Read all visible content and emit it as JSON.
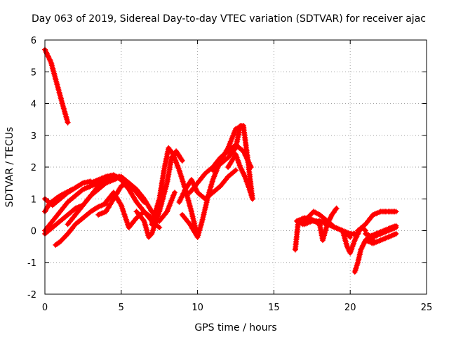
{
  "chart_data": {
    "type": "scatter",
    "title": "Day 063 of 2019, Sidereal Day-to-day VTEC variation (SDTVAR) for receiver ajac",
    "xlabel": "GPS time / hours",
    "ylabel": "SDTVAR / TECUs",
    "xlim": [
      0,
      25
    ],
    "ylim": [
      -2,
      6
    ],
    "xticks": [
      0,
      5,
      10,
      15,
      20,
      25
    ],
    "yticks": [
      -2,
      -1,
      0,
      1,
      2,
      3,
      4,
      5,
      6
    ],
    "grid": true,
    "marker": "plus",
    "color": "#ff0000",
    "series": [
      {
        "name": "s1",
        "x": [
          0.0,
          0.4,
          0.8,
          1.2,
          1.5
        ],
        "y": [
          5.7,
          5.3,
          4.6,
          3.9,
          3.4
        ]
      },
      {
        "name": "s2",
        "x": [
          0.0,
          0.5,
          1.0,
          1.5,
          2.0,
          2.5,
          3.0
        ],
        "y": [
          1.0,
          0.8,
          1.0,
          1.2,
          1.35,
          1.5,
          1.55
        ]
      },
      {
        "name": "s3",
        "x": [
          0.0,
          0.5,
          1.0,
          1.5,
          2.0,
          2.5,
          3.0,
          3.5,
          4.0
        ],
        "y": [
          0.0,
          0.3,
          0.6,
          0.9,
          1.1,
          1.3,
          1.4,
          1.5,
          1.55
        ]
      },
      {
        "name": "s4",
        "x": [
          0.0,
          0.3,
          0.7,
          1.0,
          1.4,
          1.8
        ],
        "y": [
          0.6,
          0.85,
          1.0,
          1.1,
          1.2,
          1.3
        ]
      },
      {
        "name": "s5",
        "x": [
          0.7,
          1.0,
          1.5,
          2.0,
          2.5,
          3.0,
          3.5,
          4.0
        ],
        "y": [
          -0.45,
          -0.35,
          -0.1,
          0.2,
          0.4,
          0.6,
          0.75,
          0.85
        ]
      },
      {
        "name": "s6",
        "x": [
          0.0,
          0.5,
          1.0,
          1.5,
          2.0,
          2.5
        ],
        "y": [
          -0.1,
          0.1,
          0.3,
          0.5,
          0.7,
          0.8
        ]
      },
      {
        "name": "s7",
        "x": [
          1.5,
          2.0,
          2.5,
          3.0,
          3.5,
          4.0,
          4.5,
          5.0
        ],
        "y": [
          0.2,
          0.5,
          0.8,
          1.1,
          1.3,
          1.5,
          1.6,
          1.7
        ]
      },
      {
        "name": "s8",
        "x": [
          2.5,
          3.0,
          3.5,
          4.0,
          4.5,
          5.0,
          5.5,
          6.0,
          6.5
        ],
        "y": [
          0.8,
          1.1,
          1.4,
          1.6,
          1.7,
          1.7,
          1.5,
          1.2,
          0.9
        ]
      },
      {
        "name": "s9",
        "x": [
          3.0,
          3.5,
          4.0,
          4.5,
          5.0,
          5.5,
          6.0,
          6.5,
          7.0
        ],
        "y": [
          1.5,
          1.6,
          1.7,
          1.75,
          1.6,
          1.3,
          0.9,
          0.6,
          0.4
        ]
      },
      {
        "name": "s10",
        "x": [
          3.5,
          4.0,
          4.5,
          5.0,
          5.5,
          6.0,
          6.5,
          7.0,
          7.5,
          8.0,
          8.5
        ],
        "y": [
          0.5,
          0.6,
          1.0,
          1.4,
          1.5,
          1.3,
          1.0,
          0.6,
          0.3,
          0.6,
          1.2
        ]
      },
      {
        "name": "s11",
        "x": [
          4.0,
          4.5,
          5.0,
          5.5,
          6.0,
          6.5,
          7.0,
          7.5
        ],
        "y": [
          0.9,
          1.2,
          0.8,
          0.1,
          0.4,
          0.6,
          0.3,
          0.1
        ]
      },
      {
        "name": "s12",
        "x": [
          6.0,
          6.5,
          6.8,
          7.0,
          7.5,
          8.0,
          8.3,
          8.6,
          9.0
        ],
        "y": [
          0.6,
          0.3,
          -0.2,
          -0.1,
          0.6,
          1.5,
          2.3,
          2.5,
          2.2
        ]
      },
      {
        "name": "s13",
        "x": [
          7.0,
          7.5,
          7.8,
          8.1,
          8.4,
          8.8,
          9.2,
          9.6,
          10.0
        ],
        "y": [
          0.2,
          1.0,
          1.9,
          2.6,
          2.4,
          1.9,
          1.3,
          0.6,
          -0.2
        ]
      },
      {
        "name": "s14",
        "x": [
          8.8,
          9.2,
          9.6,
          10.0,
          10.5,
          11.0,
          11.5,
          12.0,
          12.5
        ],
        "y": [
          0.9,
          1.3,
          1.6,
          1.2,
          1.0,
          1.2,
          1.4,
          1.7,
          1.9
        ]
      },
      {
        "name": "s15",
        "x": [
          9.0,
          9.5,
          10.0,
          10.3,
          10.7,
          11.0,
          11.5,
          12.0,
          12.5,
          13.0
        ],
        "y": [
          0.5,
          0.2,
          -0.2,
          0.3,
          1.1,
          1.6,
          2.2,
          2.6,
          3.2,
          3.3
        ]
      },
      {
        "name": "s16",
        "x": [
          9.5,
          10.0,
          10.5,
          11.0,
          11.5,
          12.0,
          12.5,
          13.0,
          13.5
        ],
        "y": [
          1.2,
          1.5,
          1.8,
          2.0,
          2.3,
          2.5,
          2.7,
          2.5,
          2.0
        ]
      },
      {
        "name": "s17",
        "x": [
          11.0,
          11.5,
          12.0,
          12.5,
          12.8,
          13.0,
          13.3,
          13.6
        ],
        "y": [
          1.9,
          2.1,
          2.3,
          2.6,
          3.3,
          3.3,
          2.2,
          1.0
        ]
      },
      {
        "name": "s18",
        "x": [
          12.0,
          12.5,
          12.8,
          13.1,
          13.4,
          13.6
        ],
        "y": [
          2.0,
          2.4,
          2.0,
          1.7,
          1.3,
          1.0
        ]
      },
      {
        "name": "s19",
        "x": [
          16.4,
          16.6,
          16.9,
          17.2,
          17.6,
          18.0,
          18.5,
          19.0,
          19.5,
          20.0
        ],
        "y": [
          -0.6,
          0.3,
          0.2,
          0.4,
          0.6,
          0.5,
          0.3,
          0.1,
          0.0,
          -0.2
        ]
      },
      {
        "name": "s20",
        "x": [
          16.5,
          17.0,
          17.5,
          18.0,
          18.2,
          18.5,
          18.8,
          19.1
        ],
        "y": [
          0.3,
          0.4,
          0.35,
          0.2,
          -0.3,
          0.2,
          0.5,
          0.7
        ]
      },
      {
        "name": "s21",
        "x": [
          17.0,
          17.5,
          18.0,
          18.5,
          19.0,
          19.5,
          20.0,
          20.5
        ],
        "y": [
          0.2,
          0.3,
          0.3,
          0.2,
          0.1,
          0.0,
          -0.1,
          -0.1
        ]
      },
      {
        "name": "s22",
        "x": [
          19.5,
          19.8,
          20.0,
          20.3,
          20.6,
          20.8,
          21.0
        ],
        "y": [
          0.0,
          -0.5,
          -0.7,
          -0.3,
          0.0,
          0.1,
          0.0
        ]
      },
      {
        "name": "s23",
        "x": [
          20.3,
          20.5,
          20.7,
          21.0,
          21.3,
          21.5
        ],
        "y": [
          -1.3,
          -1.0,
          -0.6,
          -0.3,
          -0.2,
          -0.3
        ]
      },
      {
        "name": "s24",
        "x": [
          20.5,
          21.0,
          21.5,
          22.0,
          22.5,
          23.0
        ],
        "y": [
          0.0,
          0.2,
          0.5,
          0.6,
          0.6,
          0.6
        ]
      },
      {
        "name": "s25",
        "x": [
          21.0,
          21.5,
          22.0,
          22.5,
          23.0
        ],
        "y": [
          -0.3,
          -0.4,
          -0.3,
          -0.2,
          -0.1
        ]
      },
      {
        "name": "s26",
        "x": [
          21.0,
          21.5,
          22.0,
          22.5,
          23.0
        ],
        "y": [
          -0.1,
          -0.2,
          -0.1,
          0.0,
          0.1
        ]
      },
      {
        "name": "s27",
        "x": [
          21.2,
          21.7,
          22.2,
          22.7,
          23.0
        ],
        "y": [
          -0.2,
          -0.1,
          0.0,
          0.1,
          0.15
        ]
      }
    ]
  }
}
